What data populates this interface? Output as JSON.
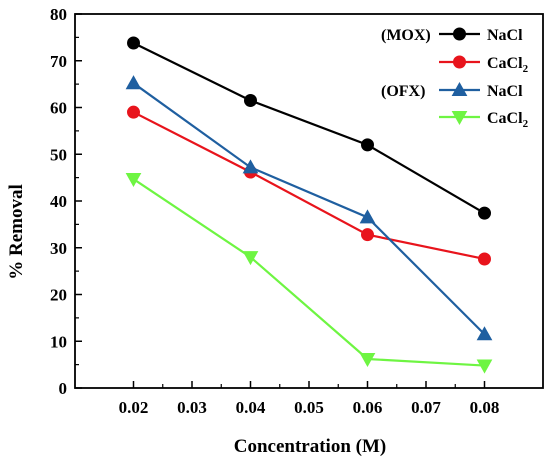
{
  "chart_data": {
    "type": "line",
    "x": [
      0.02,
      0.04,
      0.06,
      0.08
    ],
    "xlabel": "Concentration (M)",
    "ylabel": "% Removal",
    "xlim": [
      0.01,
      0.09
    ],
    "ylim": [
      0,
      80
    ],
    "x_ticks": [
      "0.02",
      "0.03",
      "0.04",
      "0.05",
      "0.06",
      "0.07",
      "0.08"
    ],
    "y_ticks": [
      "0",
      "10",
      "20",
      "30",
      "40",
      "50",
      "60",
      "70",
      "80"
    ],
    "grid": false,
    "legend_position": "top-right",
    "series": [
      {
        "name": "NaCl",
        "group": "(MOX)",
        "marker": "circle",
        "color": "#000000",
        "values": [
          73.8,
          61.5,
          52.0,
          37.4
        ]
      },
      {
        "name": "CaCl",
        "name_sub": "2",
        "group": "",
        "marker": "circle",
        "color": "#e8141c",
        "values": [
          59.0,
          46.2,
          32.8,
          27.6
        ]
      },
      {
        "name": "NaCl",
        "group": "(OFX)",
        "marker": "triangle-up",
        "color": "#1f5fa0",
        "values": [
          65.2,
          47.2,
          36.5,
          11.5
        ]
      },
      {
        "name": "CaCl",
        "name_sub": "2",
        "group": "",
        "marker": "triangle-down",
        "color": "#6ef542",
        "values": [
          44.7,
          28.0,
          6.2,
          4.8
        ]
      }
    ]
  }
}
